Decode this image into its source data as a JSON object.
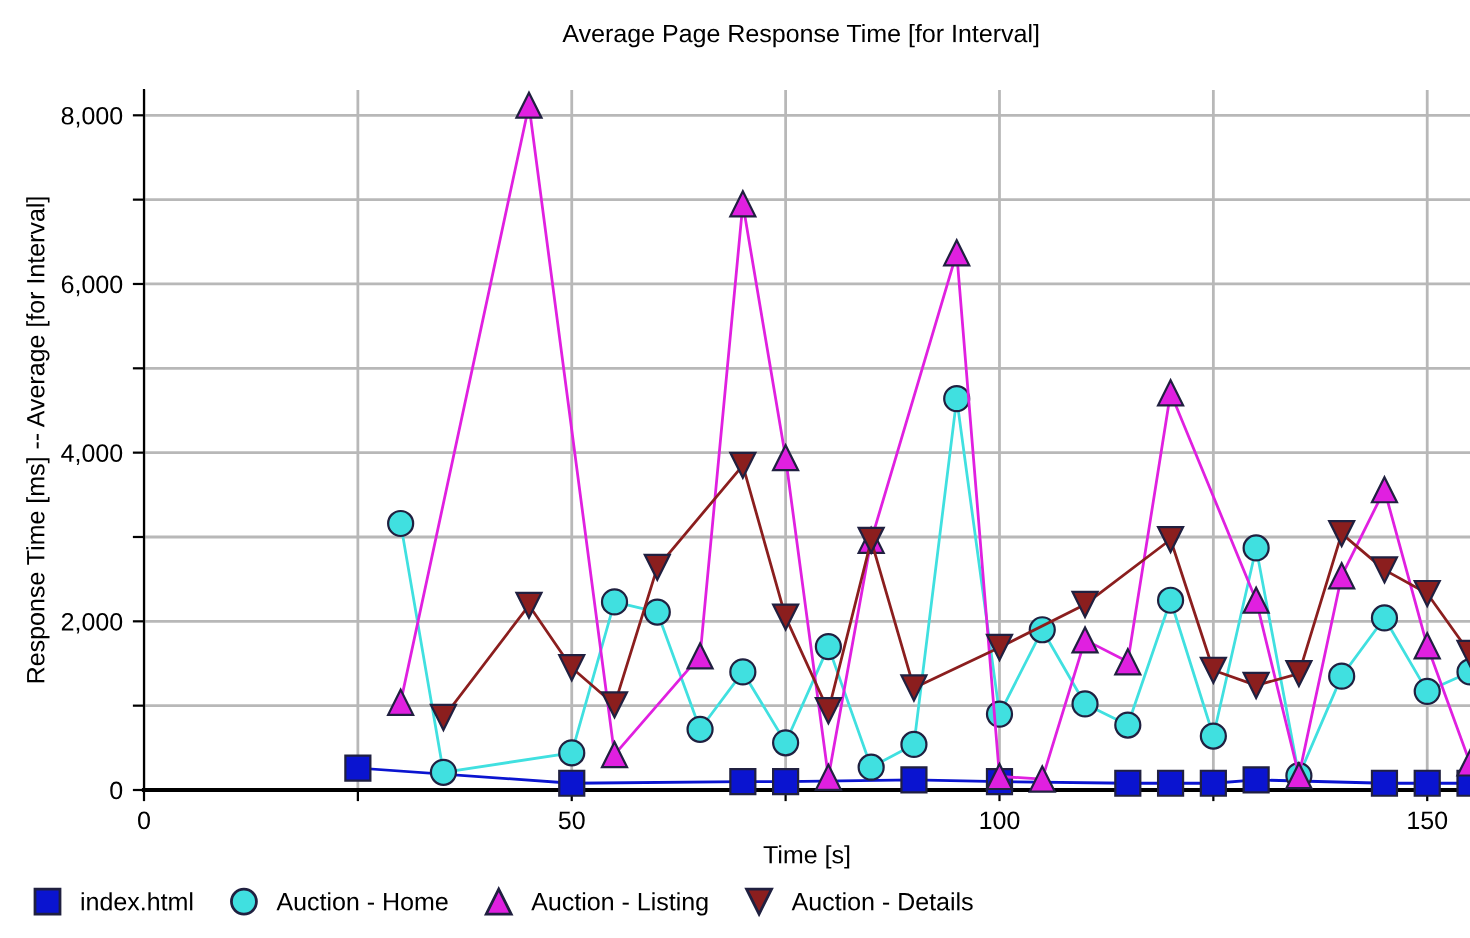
{
  "chart_data": {
    "type": "line",
    "title": "Average Page Response Time [for Interval]",
    "xlabel": "Time [s]",
    "ylabel": "Response Time [ms] -- Average [for Interval]",
    "xlim": [
      0,
      155
    ],
    "xticks": [
      0,
      {
        "value": 25,
        "label": null
      },
      50,
      {
        "value": 75,
        "label": null
      },
      100,
      {
        "value": 125,
        "label": null
      },
      150
    ],
    "ylim": [
      0,
      8300
    ],
    "yticks": [
      {
        "value": 0,
        "label": "0"
      },
      {
        "value": 1000,
        "label": null
      },
      {
        "value": 2000,
        "label": "2,000"
      },
      {
        "value": 3000,
        "label": null
      },
      {
        "value": 4000,
        "label": "4,000"
      },
      {
        "value": 5000,
        "label": null
      },
      {
        "value": 6000,
        "label": "6,000"
      },
      {
        "value": 7000,
        "label": null
      },
      {
        "value": 8000,
        "label": "8,000"
      }
    ],
    "grid": true,
    "legend": "bottom",
    "line_style": "solid",
    "series": [
      {
        "name": "index.html",
        "color": "#0a14d0",
        "marker": "square",
        "x": [
          25,
          50,
          70,
          75,
          90,
          100,
          115,
          120,
          125,
          130,
          145,
          150,
          155
        ],
        "values": [
          260,
          80,
          100,
          100,
          120,
          100,
          80,
          80,
          80,
          120,
          80,
          80,
          80
        ]
      },
      {
        "name": "Auction - Home",
        "color": "#40e0e0",
        "marker": "circle",
        "x": [
          30,
          35,
          50,
          55,
          60,
          65,
          70,
          75,
          80,
          85,
          90,
          95,
          100,
          105,
          110,
          115,
          120,
          125,
          130,
          135,
          140,
          145,
          150,
          155
        ],
        "values": [
          3160,
          210,
          440,
          2230,
          2110,
          720,
          1400,
          560,
          1700,
          270,
          540,
          4640,
          900,
          1900,
          1020,
          770,
          2250,
          640,
          2870,
          170,
          1350,
          2040,
          1170,
          1400
        ]
      },
      {
        "name": "Auction - Listing",
        "color": "#e020e0",
        "marker": "triangle",
        "x": [
          30,
          45,
          55,
          65,
          70,
          75,
          80,
          85,
          95,
          100,
          105,
          110,
          115,
          120,
          130,
          135,
          140,
          145,
          150,
          155
        ],
        "values": [
          1040,
          8120,
          420,
          1590,
          6950,
          3940,
          150,
          2960,
          6370,
          160,
          130,
          1780,
          1520,
          4710,
          2250,
          170,
          2540,
          3560,
          1710,
          320
        ]
      },
      {
        "name": "Auction - Details",
        "color": "#8b1e1e",
        "marker": "triangle_down",
        "x": [
          35,
          45,
          50,
          55,
          60,
          70,
          75,
          80,
          85,
          90,
          100,
          110,
          120,
          125,
          130,
          135,
          140,
          145,
          150,
          155
        ],
        "values": [
          860,
          2190,
          1450,
          1010,
          2640,
          3850,
          2050,
          940,
          2960,
          1210,
          1690,
          2200,
          2970,
          1420,
          1240,
          1380,
          3040,
          2610,
          2330,
          1620
        ]
      }
    ]
  }
}
